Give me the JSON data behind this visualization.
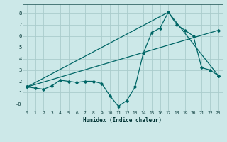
{
  "xlabel": "Humidex (Indice chaleur)",
  "bg_color": "#cce8e8",
  "grid_color": "#aacccc",
  "line_color": "#006666",
  "ylim": [
    -0.6,
    8.8
  ],
  "xlim": [
    -0.5,
    23.5
  ],
  "yticks": [
    0,
    1,
    2,
    3,
    4,
    5,
    6,
    7,
    8
  ],
  "ytick_labels": [
    "-0",
    "1",
    "2",
    "3",
    "4",
    "5",
    "6",
    "7",
    "8"
  ],
  "xticks": [
    0,
    1,
    2,
    3,
    4,
    5,
    6,
    7,
    8,
    9,
    10,
    11,
    12,
    13,
    14,
    15,
    16,
    17,
    18,
    19,
    20,
    21,
    22,
    23
  ],
  "line1_x": [
    0,
    1,
    2,
    3,
    4,
    5,
    6,
    7,
    8,
    9,
    10,
    11,
    12,
    13,
    14,
    15,
    16,
    17,
    18,
    19,
    20,
    21,
    22,
    23
  ],
  "line1_y": [
    1.5,
    1.4,
    1.3,
    1.6,
    2.1,
    2.0,
    1.9,
    2.0,
    2.0,
    1.8,
    0.7,
    -0.2,
    0.3,
    1.5,
    4.5,
    6.3,
    6.7,
    8.1,
    7.0,
    6.5,
    6.0,
    3.2,
    3.0,
    2.5
  ],
  "line2_x": [
    0,
    23
  ],
  "line2_y": [
    1.5,
    6.5
  ],
  "line3_x": [
    0,
    17,
    23
  ],
  "line3_y": [
    1.5,
    8.1,
    2.5
  ]
}
